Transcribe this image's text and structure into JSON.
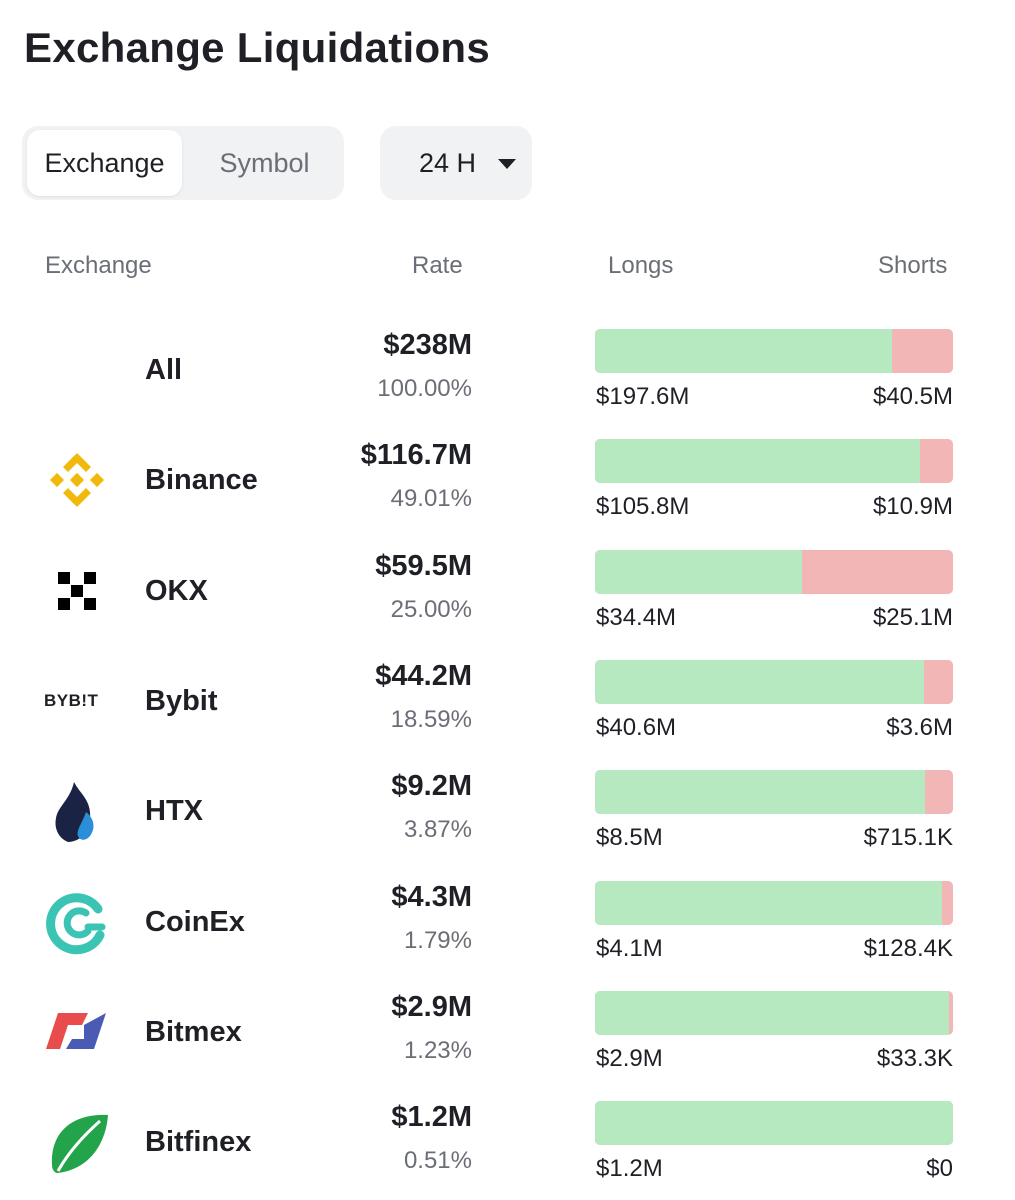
{
  "title": "Exchange Liquidations",
  "tabs": {
    "active": "Exchange",
    "inactive": "Symbol"
  },
  "period": {
    "selected": "24 H"
  },
  "columns": {
    "exchange": "Exchange",
    "rate": "Rate",
    "longs": "Longs",
    "shorts": "Shorts"
  },
  "colors": {
    "long": "#b7e9c1",
    "short": "#f2b6b6",
    "text": "#1e2026",
    "muted": "#6b6e76"
  },
  "rows": [
    {
      "name": "All",
      "logo": "none",
      "rate": "$238M",
      "pct": "100.00%",
      "longs": "$197.6M",
      "shorts": "$40.5M",
      "long_fraction": 0.83
    },
    {
      "name": "Binance",
      "logo": "binance-icon",
      "rate": "$116.7M",
      "pct": "49.01%",
      "longs": "$105.8M",
      "shorts": "$10.9M",
      "long_fraction": 0.907
    },
    {
      "name": "OKX",
      "logo": "okx-icon",
      "rate": "$59.5M",
      "pct": "25.00%",
      "longs": "$34.4M",
      "shorts": "$25.1M",
      "long_fraction": 0.578
    },
    {
      "name": "Bybit",
      "logo": "bybit-icon",
      "logo_text": "BYB!T",
      "rate": "$44.2M",
      "pct": "18.59%",
      "longs": "$40.6M",
      "shorts": "$3.6M",
      "long_fraction": 0.919
    },
    {
      "name": "HTX",
      "logo": "htx-icon",
      "rate": "$9.2M",
      "pct": "3.87%",
      "longs": "$8.5M",
      "shorts": "$715.1K",
      "long_fraction": 0.922
    },
    {
      "name": "CoinEx",
      "logo": "coinex-icon",
      "rate": "$4.3M",
      "pct": "1.79%",
      "longs": "$4.1M",
      "shorts": "$128.4K",
      "long_fraction": 0.97
    },
    {
      "name": "Bitmex",
      "logo": "bitmex-icon",
      "rate": "$2.9M",
      "pct": "1.23%",
      "longs": "$2.9M",
      "shorts": "$33.3K",
      "long_fraction": 0.988
    },
    {
      "name": "Bitfinex",
      "logo": "bitfinex-icon",
      "rate": "$1.2M",
      "pct": "0.51%",
      "longs": "$1.2M",
      "shorts": "$0",
      "long_fraction": 1.0
    }
  ]
}
